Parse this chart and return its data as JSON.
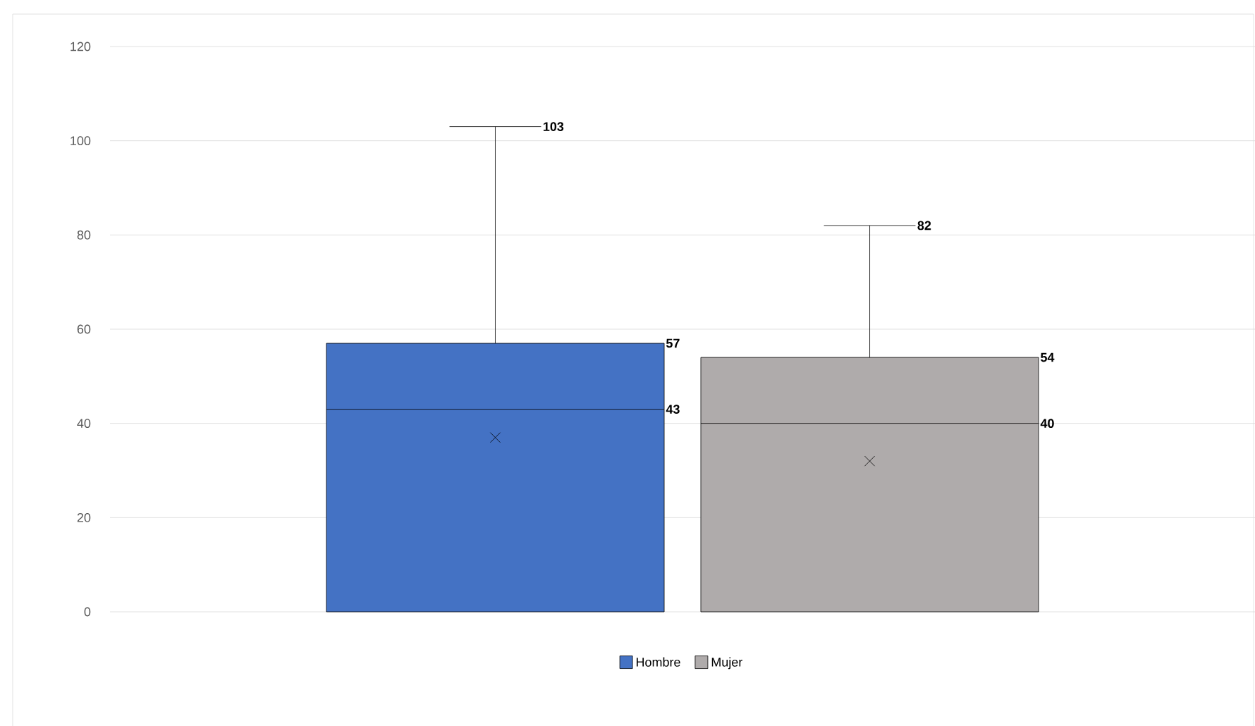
{
  "chart_data": {
    "type": "box",
    "categories": [
      null
    ],
    "series": [
      {
        "name": "Hombre",
        "color": "#4472c4",
        "boxes": [
          {
            "low": 0,
            "q1": 0,
            "median": 43,
            "q3": 57,
            "high": 103,
            "mean": 37
          }
        ]
      },
      {
        "name": "Mujer",
        "color": "#afabab",
        "boxes": [
          {
            "low": 0,
            "q1": 0,
            "median": 40,
            "q3": 54,
            "high": 82,
            "mean": 32
          }
        ]
      }
    ],
    "annotations": [
      "103",
      "57",
      "43",
      "82",
      "54",
      "40"
    ],
    "ylim": [
      0,
      120
    ],
    "yticks": [
      0,
      20,
      40,
      60,
      80,
      100,
      120
    ],
    "grid": "y",
    "legend": "bottom"
  }
}
